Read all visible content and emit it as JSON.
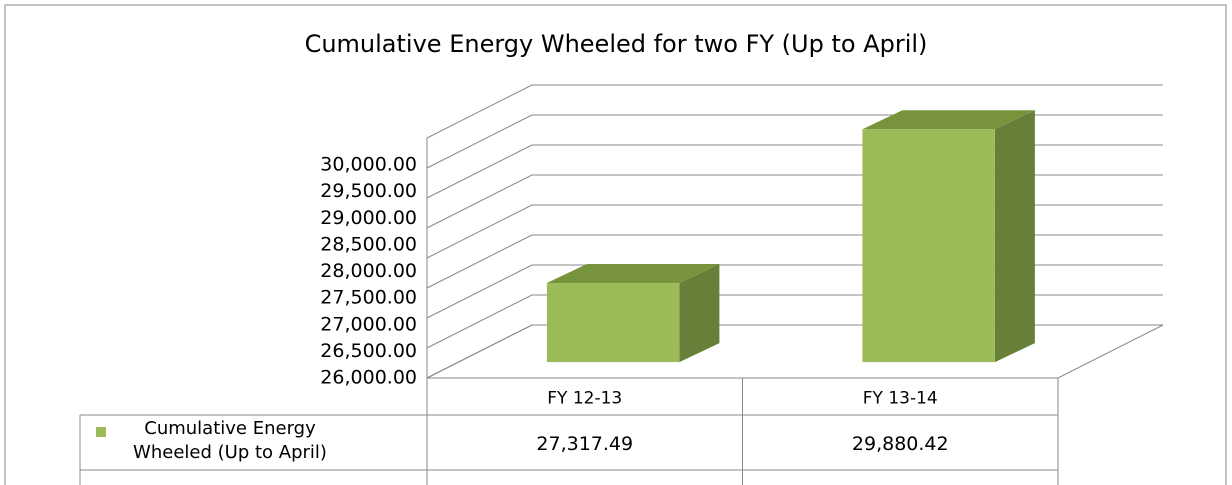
{
  "chart_data": {
    "type": "bar3d",
    "title": "Cumulative Energy Wheeled  for  two FY (Up to April)",
    "categories": [
      "FY 12-13",
      "FY 13-14"
    ],
    "series": [
      {
        "name": "Cumulative Energy Wheeled (Up to April)",
        "color": "#9bbb59",
        "values": [
          27317.49,
          29880.42
        ],
        "value_labels": [
          "27,317.49",
          "29,880.42"
        ]
      }
    ],
    "ylim": [
      26000,
      30000
    ],
    "yticks": [
      {
        "value": 26000,
        "label": "26,000.00"
      },
      {
        "value": 26500,
        "label": "26,500.00"
      },
      {
        "value": 27000,
        "label": "27,000.00"
      },
      {
        "value": 27500,
        "label": "27,500.00"
      },
      {
        "value": 28000,
        "label": "28,000.00"
      },
      {
        "value": 28500,
        "label": "28,500.00"
      },
      {
        "value": 29000,
        "label": "29,000.00"
      },
      {
        "value": 29500,
        "label": "29,500.00"
      },
      {
        "value": 30000,
        "label": "30,000.00"
      }
    ],
    "grid": true,
    "data_table": true
  }
}
